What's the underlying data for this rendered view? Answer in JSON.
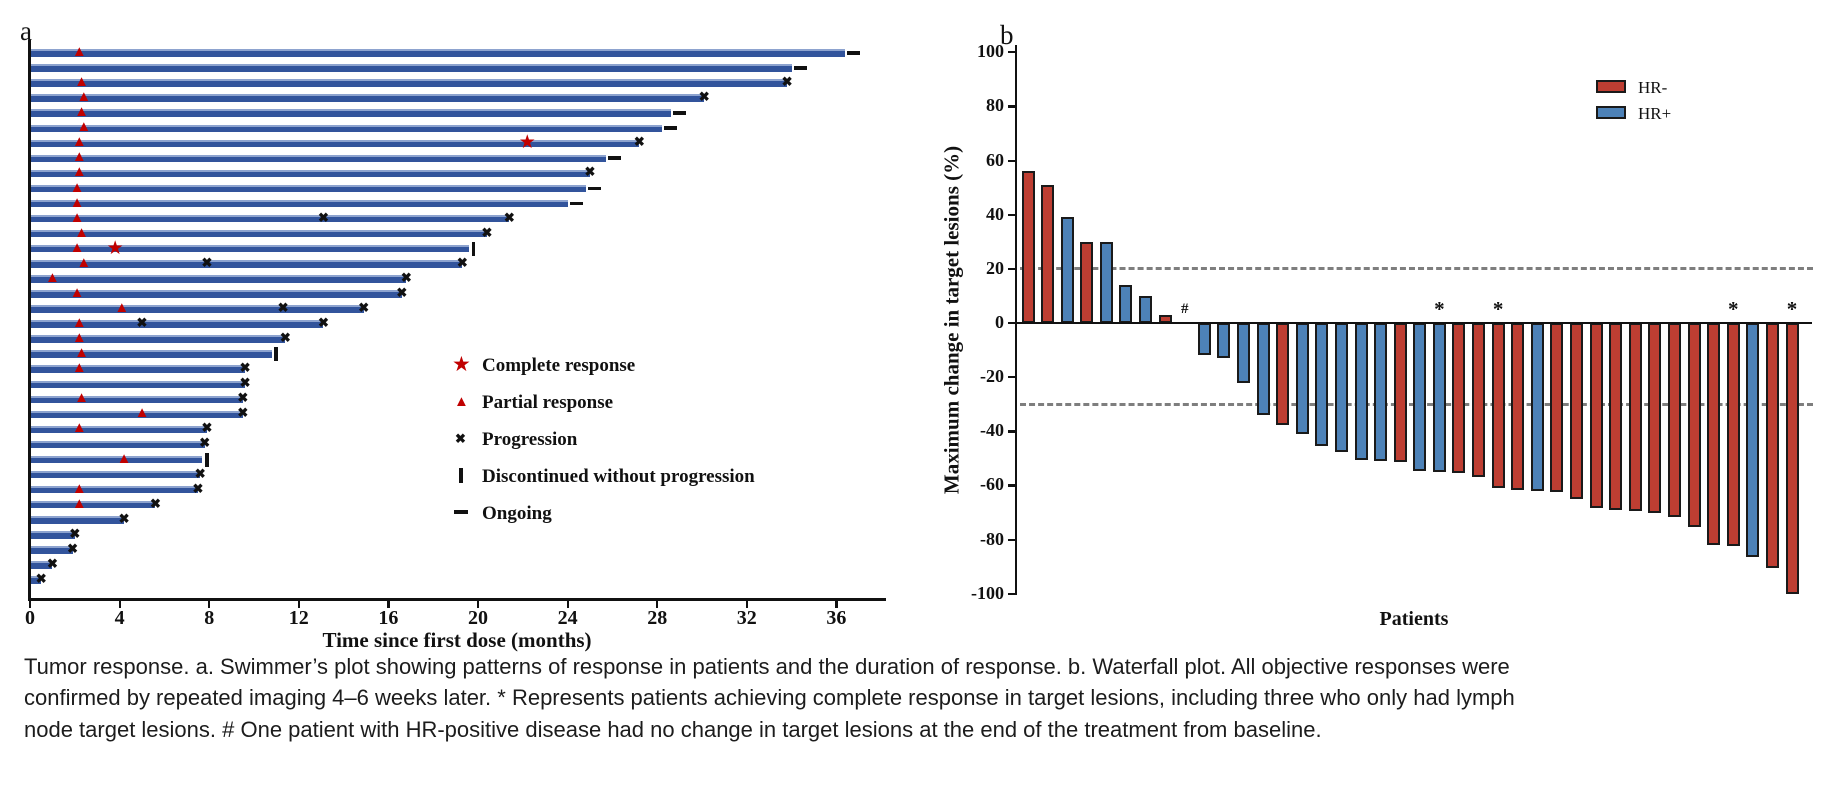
{
  "figure": {
    "panel_a_label": "a",
    "panel_b_label": "b"
  },
  "caption": "Tumor response. a. Swimmer’s plot showing patterns of response in patients and the duration of response. b. Waterfall plot. All objective responses were confirmed by repeated imaging 4–6 weeks later. * Represents patients achieving complete response in target lesions, including three who only had lymph node target lesions. # One patient with HR-positive disease had no change in target lesions at the end of the treatment from baseline.",
  "chart_data": [
    {
      "type": "swimmer",
      "xlabel": "Time since first dose (months)",
      "xlim": [
        0,
        38
      ],
      "xticks": [
        0,
        4,
        8,
        12,
        16,
        20,
        24,
        28,
        32,
        36
      ],
      "bar_color": "#32549C",
      "response_marker_color": "#C00000",
      "event_marker_color": "#111111",
      "legend": [
        {
          "symbol": "star",
          "label": "Complete response"
        },
        {
          "symbol": "triangle",
          "label": "Partial response"
        },
        {
          "symbol": "x",
          "label": "Progression"
        },
        {
          "symbol": "vbar",
          "label": "Discontinued without progression"
        },
        {
          "symbol": "dash",
          "label": "Ongoing"
        }
      ],
      "patients": [
        {
          "duration": 36.4,
          "end": "ongoing",
          "pr": 2.2,
          "cr": null,
          "progression_marks": []
        },
        {
          "duration": 34.0,
          "end": "ongoing",
          "pr": null,
          "cr": null,
          "progression_marks": []
        },
        {
          "duration": 33.8,
          "end": "progression",
          "pr": 2.3,
          "cr": null,
          "progression_marks": []
        },
        {
          "duration": 30.1,
          "end": "progression",
          "pr": 2.4,
          "cr": null,
          "progression_marks": []
        },
        {
          "duration": 28.6,
          "end": "ongoing",
          "pr": 2.3,
          "cr": null,
          "progression_marks": []
        },
        {
          "duration": 28.2,
          "end": "ongoing",
          "pr": 2.4,
          "cr": null,
          "progression_marks": []
        },
        {
          "duration": 27.2,
          "end": "progression",
          "pr": 2.2,
          "cr": 22.2,
          "progression_marks": []
        },
        {
          "duration": 25.7,
          "end": "ongoing",
          "pr": 2.2,
          "cr": null,
          "progression_marks": []
        },
        {
          "duration": 25.0,
          "end": "progression",
          "pr": 2.2,
          "cr": null,
          "progression_marks": []
        },
        {
          "duration": 24.8,
          "end": "ongoing",
          "pr": 2.1,
          "cr": null,
          "progression_marks": []
        },
        {
          "duration": 24.0,
          "end": "ongoing",
          "pr": 2.1,
          "cr": null,
          "progression_marks": []
        },
        {
          "duration": 21.4,
          "end": "progression",
          "pr": 2.1,
          "cr": null,
          "progression_marks": [
            13.1
          ]
        },
        {
          "duration": 20.4,
          "end": "progression",
          "pr": 2.3,
          "cr": null,
          "progression_marks": []
        },
        {
          "duration": 19.6,
          "end": "discontinued",
          "pr": 2.1,
          "cr": 3.8,
          "progression_marks": []
        },
        {
          "duration": 19.3,
          "end": "progression",
          "pr": 2.4,
          "cr": null,
          "progression_marks": [
            7.9
          ]
        },
        {
          "duration": 16.8,
          "end": "progression",
          "pr": 1.0,
          "cr": null,
          "progression_marks": []
        },
        {
          "duration": 16.6,
          "end": "progression",
          "pr": 2.1,
          "cr": null,
          "progression_marks": []
        },
        {
          "duration": 14.9,
          "end": "progression",
          "pr": 4.1,
          "cr": null,
          "progression_marks": [
            11.3
          ]
        },
        {
          "duration": 13.1,
          "end": "progression",
          "pr": 2.2,
          "cr": null,
          "progression_marks": [
            5.0
          ]
        },
        {
          "duration": 11.4,
          "end": "progression",
          "pr": 2.2,
          "cr": null,
          "progression_marks": []
        },
        {
          "duration": 10.8,
          "end": "discontinued",
          "pr": 2.3,
          "cr": null,
          "progression_marks": []
        },
        {
          "duration": 9.6,
          "end": "progression",
          "pr": 2.2,
          "cr": null,
          "progression_marks": []
        },
        {
          "duration": 9.6,
          "end": "progression",
          "pr": null,
          "cr": null,
          "progression_marks": []
        },
        {
          "duration": 9.5,
          "end": "progression",
          "pr": 2.3,
          "cr": null,
          "progression_marks": []
        },
        {
          "duration": 9.5,
          "end": "progression",
          "pr": 5.0,
          "cr": null,
          "progression_marks": []
        },
        {
          "duration": 7.9,
          "end": "progression",
          "pr": 2.2,
          "cr": null,
          "progression_marks": []
        },
        {
          "duration": 7.8,
          "end": "progression",
          "pr": null,
          "cr": null,
          "progression_marks": []
        },
        {
          "duration": 7.7,
          "end": "discontinued",
          "pr": 4.2,
          "cr": null,
          "progression_marks": []
        },
        {
          "duration": 7.6,
          "end": "progression",
          "pr": null,
          "cr": null,
          "progression_marks": []
        },
        {
          "duration": 7.5,
          "end": "progression",
          "pr": 2.2,
          "cr": null,
          "progression_marks": []
        },
        {
          "duration": 5.6,
          "end": "progression",
          "pr": 2.2,
          "cr": null,
          "progression_marks": []
        },
        {
          "duration": 4.2,
          "end": "progression",
          "pr": null,
          "cr": null,
          "progression_marks": []
        },
        {
          "duration": 2.0,
          "end": "progression",
          "pr": null,
          "cr": null,
          "progression_marks": []
        },
        {
          "duration": 1.9,
          "end": "progression",
          "pr": null,
          "cr": null,
          "progression_marks": []
        },
        {
          "duration": 1.0,
          "end": "progression",
          "pr": null,
          "cr": null,
          "progression_marks": []
        },
        {
          "duration": 0.5,
          "end": "progression",
          "pr": null,
          "cr": null,
          "progression_marks": []
        }
      ]
    },
    {
      "type": "waterfall",
      "ylabel": "Maximum change in target lesions (%)",
      "xlabel": "Patients",
      "ylim": [
        -100,
        100
      ],
      "yticks": [
        100,
        80,
        60,
        40,
        20,
        0,
        -20,
        -40,
        -60,
        -80,
        -100
      ],
      "reference_lines": [
        20,
        -30
      ],
      "legend": [
        {
          "label": "HR-",
          "color": "#BE3E32"
        },
        {
          "label": "HR+",
          "color": "#4D82B8"
        }
      ],
      "group_colors": {
        "HR-": "#BE3E32",
        "HR+": "#4D82B8"
      },
      "bars": [
        {
          "value": 56,
          "group": "HR-",
          "annotation": null
        },
        {
          "value": 51,
          "group": "HR-",
          "annotation": null
        },
        {
          "value": 39,
          "group": "HR+",
          "annotation": null
        },
        {
          "value": 30,
          "group": "HR-",
          "annotation": null
        },
        {
          "value": 30,
          "group": "HR+",
          "annotation": null
        },
        {
          "value": 14,
          "group": "HR+",
          "annotation": null
        },
        {
          "value": 10,
          "group": "HR+",
          "annotation": null
        },
        {
          "value": 3,
          "group": "HR-",
          "annotation": null
        },
        {
          "value": 0,
          "group": "HR+",
          "annotation": "#"
        },
        {
          "value": -12,
          "group": "HR+",
          "annotation": null
        },
        {
          "value": -13,
          "group": "HR+",
          "annotation": null
        },
        {
          "value": -22,
          "group": "HR+",
          "annotation": null
        },
        {
          "value": -34,
          "group": "HR+",
          "annotation": null
        },
        {
          "value": -37.5,
          "group": "HR-",
          "annotation": null
        },
        {
          "value": -41,
          "group": "HR+",
          "annotation": null
        },
        {
          "value": -45.5,
          "group": "HR+",
          "annotation": null
        },
        {
          "value": -47.5,
          "group": "HR+",
          "annotation": null
        },
        {
          "value": -50.5,
          "group": "HR+",
          "annotation": null
        },
        {
          "value": -51,
          "group": "HR+",
          "annotation": null
        },
        {
          "value": -51.5,
          "group": "HR-",
          "annotation": null
        },
        {
          "value": -54.5,
          "group": "HR+",
          "annotation": null
        },
        {
          "value": -55,
          "group": "HR+",
          "annotation": "*"
        },
        {
          "value": -55.5,
          "group": "HR-",
          "annotation": null
        },
        {
          "value": -57,
          "group": "HR-",
          "annotation": null
        },
        {
          "value": -61,
          "group": "HR-",
          "annotation": "*"
        },
        {
          "value": -61.5,
          "group": "HR-",
          "annotation": null
        },
        {
          "value": -62,
          "group": "HR+",
          "annotation": null
        },
        {
          "value": -62.5,
          "group": "HR-",
          "annotation": null
        },
        {
          "value": -65,
          "group": "HR-",
          "annotation": null
        },
        {
          "value": -68.5,
          "group": "HR-",
          "annotation": null
        },
        {
          "value": -69,
          "group": "HR-",
          "annotation": null
        },
        {
          "value": -69.5,
          "group": "HR-",
          "annotation": null
        },
        {
          "value": -70,
          "group": "HR-",
          "annotation": null
        },
        {
          "value": -71.5,
          "group": "HR-",
          "annotation": null
        },
        {
          "value": -75.5,
          "group": "HR-",
          "annotation": null
        },
        {
          "value": -82,
          "group": "HR-",
          "annotation": null
        },
        {
          "value": -82.5,
          "group": "HR-",
          "annotation": "*"
        },
        {
          "value": -86.5,
          "group": "HR+",
          "annotation": null
        },
        {
          "value": -90.5,
          "group": "HR-",
          "annotation": null
        },
        {
          "value": -100,
          "group": "HR-",
          "annotation": "*"
        }
      ]
    }
  ]
}
